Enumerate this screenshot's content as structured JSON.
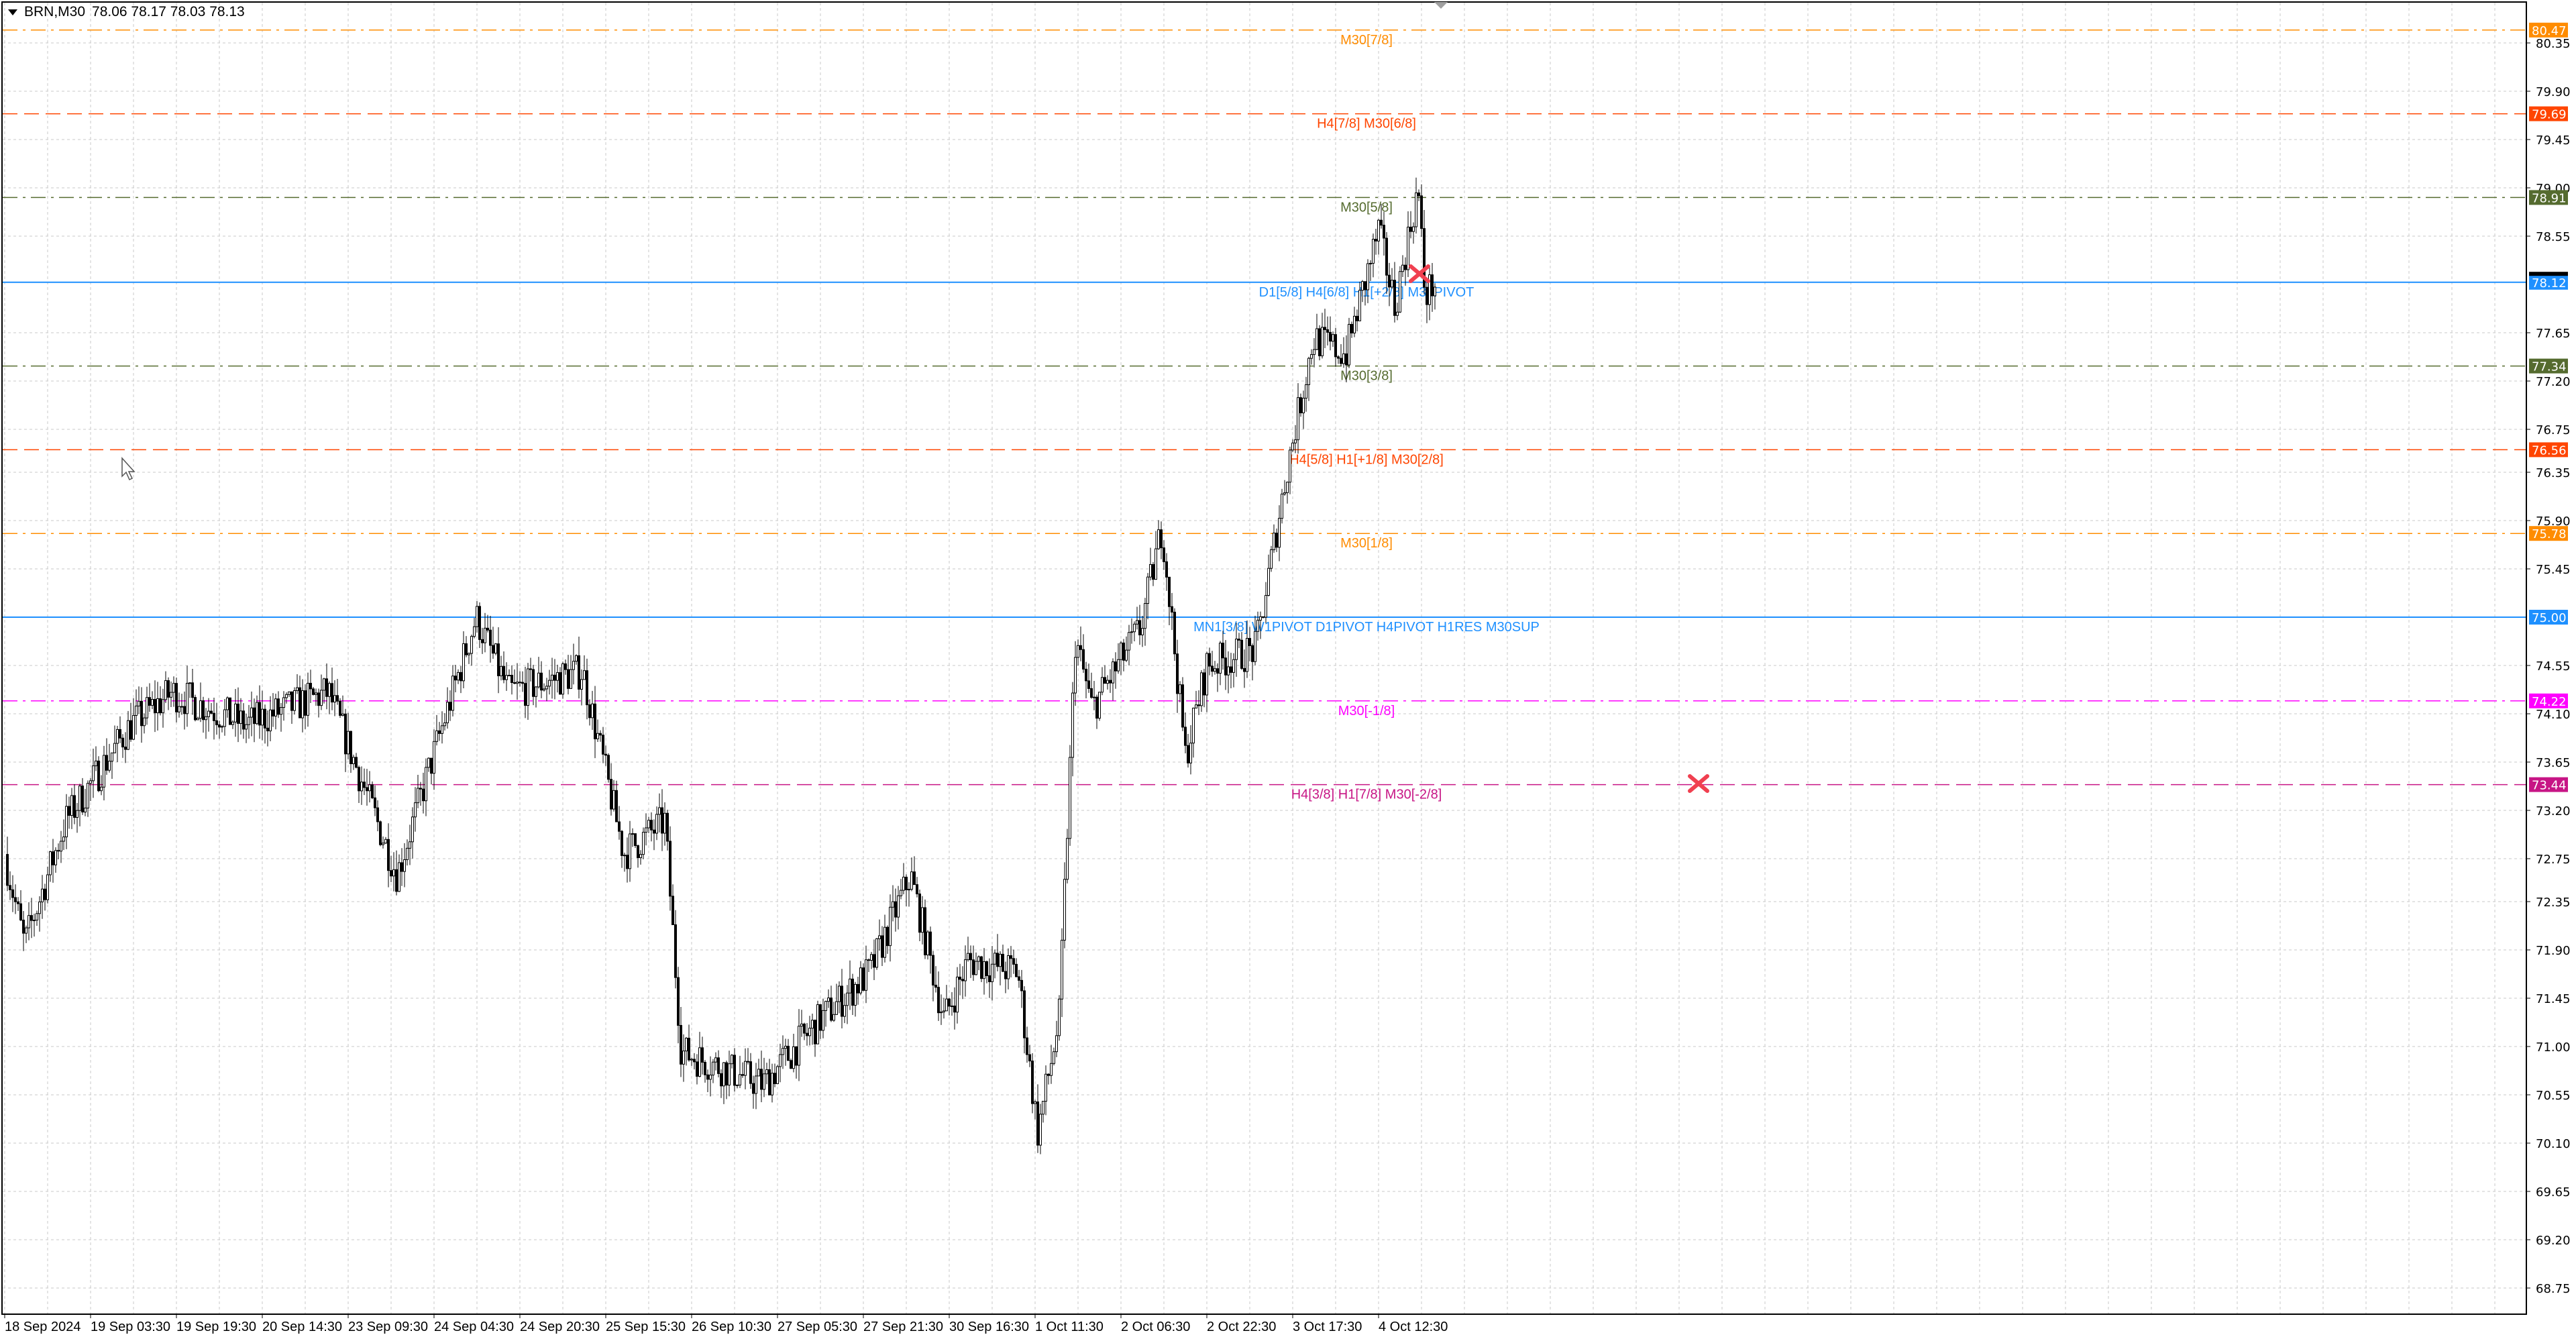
{
  "header": {
    "symbol": "BRN,M30",
    "ohlc": "78.06 78.17 78.03 78.13"
  },
  "colors": {
    "bull_body": "#ffffff",
    "bear_body": "#000000",
    "grid": "#c8c8c8",
    "cross": "#f04050"
  },
  "price_axis": {
    "ticks": [
      "80.35",
      "79.90",
      "79.45",
      "79.00",
      "78.55",
      "77.65",
      "77.20",
      "76.75",
      "76.35",
      "75.90",
      "75.45",
      "74.55",
      "74.10",
      "73.65",
      "73.20",
      "72.75",
      "72.35",
      "71.90",
      "71.45",
      "71.00",
      "70.55",
      "70.10",
      "69.65",
      "69.20",
      "68.75"
    ],
    "current_price": "78.13"
  },
  "time_axis": {
    "labels": [
      "18 Sep 2024",
      "19 Sep 03:30",
      "19 Sep 19:30",
      "20 Sep 14:30",
      "23 Sep 09:30",
      "24 Sep 04:30",
      "24 Sep 20:30",
      "25 Sep 15:30",
      "26 Sep 10:30",
      "27 Sep 05:30",
      "27 Sep 21:30",
      "30 Sep 16:30",
      "1 Oct 11:30",
      "2 Oct 06:30",
      "2 Oct 22:30",
      "3 Oct 17:30",
      "4 Oct 12:30"
    ]
  },
  "levels": [
    {
      "price": "80.47",
      "label": "M30[7/8]",
      "color": "#ff8c00",
      "style": "dashdot"
    },
    {
      "price": "79.69",
      "label": "H4[7/8] M30[6/8]",
      "color": "#ff4500",
      "style": "dash"
    },
    {
      "price": "78.91",
      "label": "M30[5/8]",
      "color": "#556b2f",
      "style": "dashdot"
    },
    {
      "price": "78.12",
      "label": "D1[5/8] H4[6/8] H1[+2/8] M30PIVOT",
      "color": "#1e90ff",
      "style": "solid"
    },
    {
      "price": "77.34",
      "label": "M30[3/8]",
      "color": "#556b2f",
      "style": "dashdot"
    },
    {
      "price": "76.56",
      "label": "H4[5/8] H1[+1/8] M30[2/8]",
      "color": "#ff4500",
      "style": "dash"
    },
    {
      "price": "75.78",
      "label": "M30[1/8]",
      "color": "#ff8c00",
      "style": "dashdot"
    },
    {
      "price": "75.00",
      "label": "MN1[3/8] W1PIVOT D1PIVOT H4PIVOT H1RES M30SUP",
      "color": "#1e90ff",
      "style": "solid"
    },
    {
      "price": "74.22",
      "label": "M30[-1/8]",
      "color": "#ff00ff",
      "style": "dashdot"
    },
    {
      "price": "73.44",
      "label": "H4[3/8] H1[7/8] M30[-2/8]",
      "color": "#c71585",
      "style": "dash"
    }
  ],
  "chart_data": {
    "type": "candlestick",
    "timeframe": "M30",
    "ylim": [
      68.6,
      80.6
    ],
    "close_path_by_time_label_index": [
      [
        0,
        72.79
      ],
      [
        0.23,
        71.95
      ],
      [
        0.71,
        73.1
      ],
      [
        1.47,
        74.0
      ],
      [
        1.95,
        74.3
      ],
      [
        2.81,
        74.0
      ],
      [
        3.77,
        74.3
      ],
      [
        4.05,
        73.7
      ],
      [
        4.57,
        72.6
      ],
      [
        4.91,
        73.5
      ],
      [
        5.49,
        75.0
      ],
      [
        5.87,
        74.3
      ],
      [
        6.73,
        74.5
      ],
      [
        7.21,
        72.8
      ],
      [
        7.69,
        73.1
      ],
      [
        7.88,
        70.95
      ],
      [
        8.36,
        70.8
      ],
      [
        8.83,
        70.65
      ],
      [
        9.5,
        71.25
      ],
      [
        10.08,
        71.7
      ],
      [
        10.55,
        72.6
      ],
      [
        10.94,
        71.25
      ],
      [
        11.22,
        71.8
      ],
      [
        11.8,
        71.7
      ],
      [
        12.03,
        70.2
      ],
      [
        12.28,
        71.25
      ],
      [
        12.47,
        74.8
      ],
      [
        12.66,
        74.15
      ],
      [
        13.23,
        74.9
      ],
      [
        13.48,
        75.85
      ],
      [
        13.75,
        73.7
      ],
      [
        14.0,
        74.55
      ],
      [
        14.57,
        74.7
      ],
      [
        14.95,
        76.45
      ],
      [
        15.24,
        77.6
      ],
      [
        15.62,
        77.45
      ],
      [
        16.0,
        78.6
      ],
      [
        16.19,
        77.9
      ],
      [
        16.46,
        79.0
      ],
      [
        16.54,
        78.0
      ],
      [
        16.67,
        78.13
      ]
    ],
    "markers": [
      {
        "type": "cross",
        "price": 78.2,
        "near": "4 Oct 12:30"
      },
      {
        "type": "cross",
        "price": 73.45,
        "near": "after last bar"
      }
    ]
  }
}
